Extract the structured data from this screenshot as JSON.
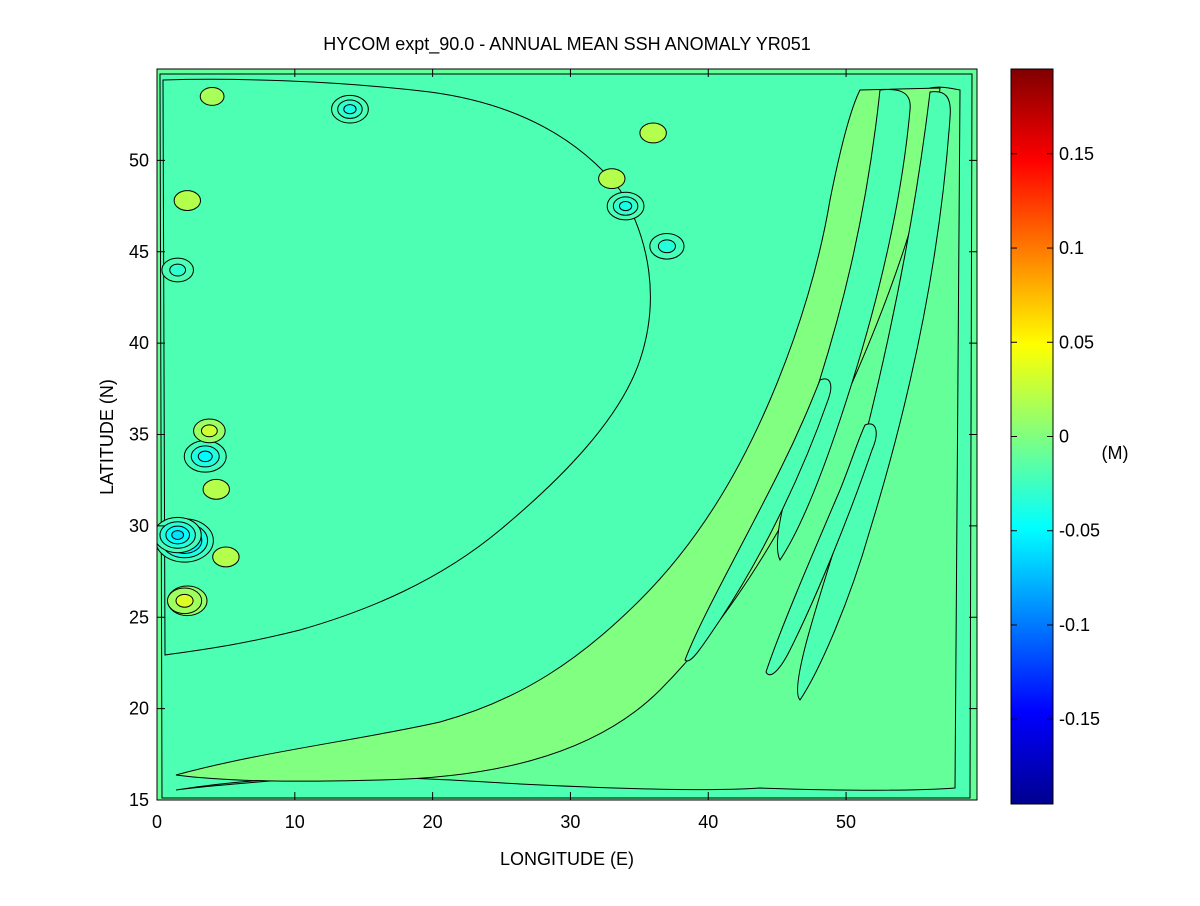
{
  "chart_data": {
    "type": "heatmap",
    "subtype": "filled-contour",
    "title": "HYCOM expt_90.0 - ANNUAL MEAN SSH ANOMALY YR051",
    "xlabel": "LONGITUDE (E)",
    "ylabel": "LATITUDE (N)",
    "xlim": [
      0,
      59.5
    ],
    "ylim": [
      15,
      55
    ],
    "x_ticks": [
      0,
      10,
      20,
      30,
      40,
      50
    ],
    "y_ticks": [
      15,
      20,
      25,
      30,
      35,
      40,
      45,
      50
    ],
    "x_tick_labels": [
      "0",
      "10",
      "20",
      "30",
      "40",
      "50"
    ],
    "y_tick_labels": [
      "15",
      "20",
      "25",
      "30",
      "35",
      "40",
      "45",
      "50"
    ],
    "grid": false,
    "colormap": "jet",
    "colorbar": {
      "label": "(M)",
      "range": [
        -0.195,
        0.195
      ],
      "ticks": [
        -0.15,
        -0.1,
        -0.05,
        0,
        0.05,
        0.1,
        0.15
      ],
      "tick_labels": [
        "-0.15",
        "-0.1",
        "-0.05",
        "0",
        "0.05",
        "0.1",
        "0.15"
      ],
      "placement": "right"
    },
    "background_value": -0.01,
    "features": [
      {
        "kind": "high",
        "lon": 2.2,
        "lat": 25.9,
        "value": 0.045
      },
      {
        "kind": "high",
        "lon": 2.0,
        "lat": 25.9,
        "value": 0.035
      },
      {
        "kind": "low",
        "lon": 2.0,
        "lat": 29.2,
        "value": -0.08
      },
      {
        "kind": "low",
        "lon": 1.5,
        "lat": 29.5,
        "value": -0.06
      },
      {
        "kind": "low",
        "lon": 3.5,
        "lat": 33.8,
        "value": -0.05
      },
      {
        "kind": "high",
        "lon": 3.8,
        "lat": 35.2,
        "value": 0.03
      },
      {
        "kind": "high",
        "lon": 4.3,
        "lat": 32.0,
        "value": 0.02
      },
      {
        "kind": "high",
        "lon": 5.0,
        "lat": 28.3,
        "value": 0.02
      },
      {
        "kind": "high",
        "lon": 2.2,
        "lat": 47.8,
        "value": 0.02
      },
      {
        "kind": "low",
        "lon": 1.5,
        "lat": 44.0,
        "value": -0.03
      },
      {
        "kind": "low",
        "lon": 14.0,
        "lat": 52.8,
        "value": -0.04
      },
      {
        "kind": "low",
        "lon": 34.0,
        "lat": 47.5,
        "value": -0.04
      },
      {
        "kind": "low",
        "lon": 37.0,
        "lat": 45.3,
        "value": -0.035
      },
      {
        "kind": "high",
        "lon": 36.0,
        "lat": 51.5,
        "value": 0.02
      },
      {
        "kind": "high",
        "lon": 33.0,
        "lat": 49.0,
        "value": 0.02
      },
      {
        "kind": "high",
        "lon": 4.0,
        "lat": 53.5,
        "value": 0.015
      }
    ]
  }
}
